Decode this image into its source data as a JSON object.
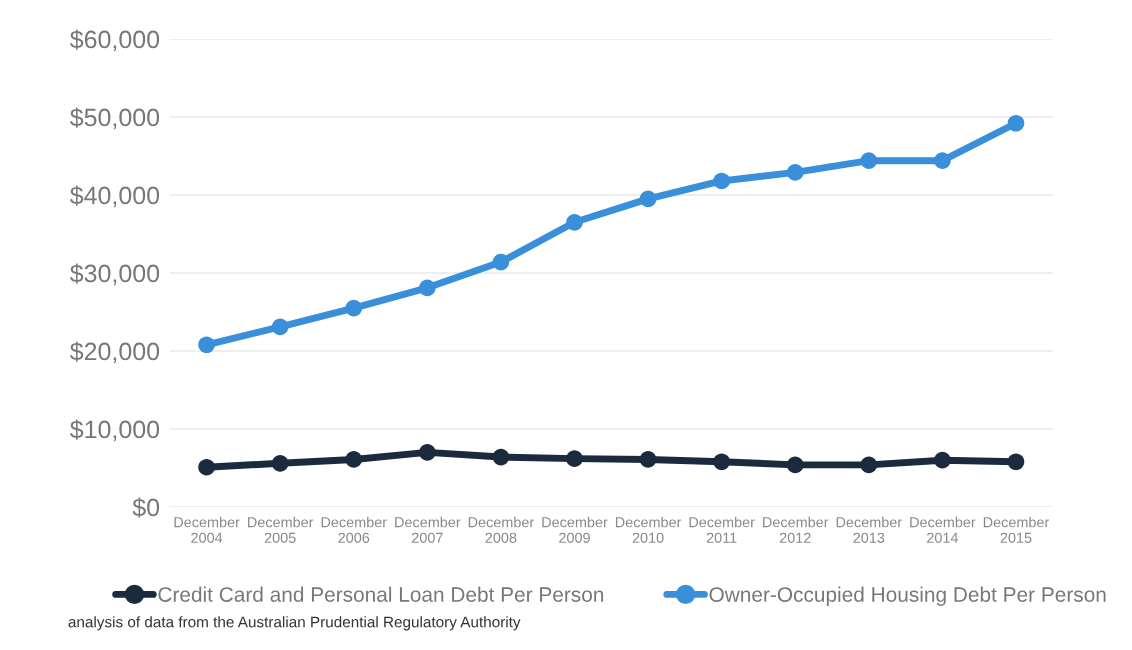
{
  "chart_data": {
    "type": "line",
    "categories": [
      "December\n2004",
      "December\n2005",
      "December\n2006",
      "December\n2007",
      "December\n2008",
      "December\n2009",
      "December\n2010",
      "December\n2011",
      "December\n2012",
      "December\n2013",
      "December\n2014",
      "December\n2015"
    ],
    "series": [
      {
        "name": "Credit Card and Personal Loan Debt Per Person",
        "color": "#1b2a3d",
        "values": [
          5100,
          5600,
          6100,
          7000,
          6400,
          6200,
          6100,
          5800,
          5400,
          5400,
          6000,
          5800
        ]
      },
      {
        "name": "Owner-Occupied Housing Debt Per Person",
        "color": "#3a8fdb",
        "values": [
          20800,
          23100,
          25500,
          28100,
          31400,
          36500,
          39500,
          41800,
          42900,
          44400,
          44400,
          49200
        ]
      }
    ],
    "ylim": [
      0,
      60000
    ],
    "yticks": [
      {
        "value": 0,
        "label": "$0"
      },
      {
        "value": 10000,
        "label": "$10,000"
      },
      {
        "value": 20000,
        "label": "$20,000"
      },
      {
        "value": 30000,
        "label": "$30,000"
      },
      {
        "value": 40000,
        "label": "$40,000"
      },
      {
        "value": 50000,
        "label": "$50,000"
      },
      {
        "value": 60000,
        "label": "$60,000"
      }
    ],
    "grid": "y",
    "legend": "bottom",
    "marker": "circle",
    "line_style": "solid",
    "annotations": [
      "analysis of data from the Australian Prudential Regulatory Authority"
    ]
  }
}
